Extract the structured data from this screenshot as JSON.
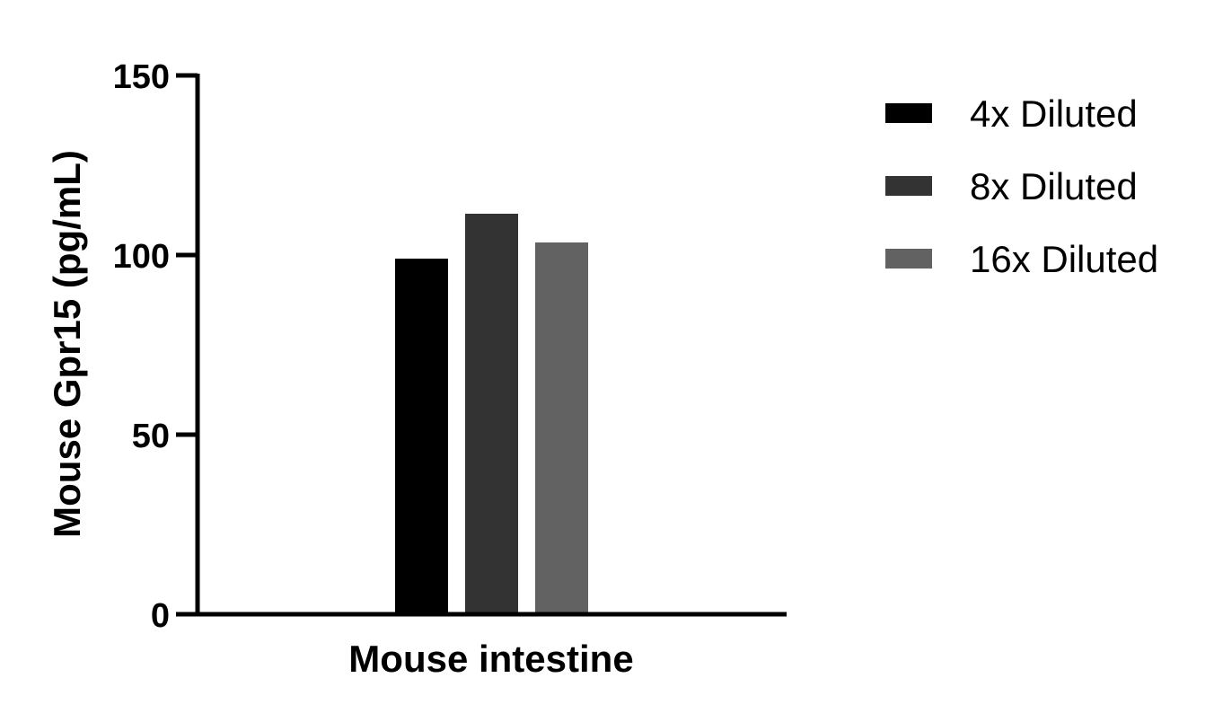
{
  "chart_data": {
    "type": "bar",
    "categories": [
      "Mouse intestine"
    ],
    "series": [
      {
        "name": "4x Diluted",
        "values": [
          99
        ],
        "color": "#000000"
      },
      {
        "name": "8x Diluted",
        "values": [
          111.5
        ],
        "color": "#333333"
      },
      {
        "name": "16x Diluted",
        "values": [
          103.5
        ],
        "color": "#626262"
      }
    ],
    "xlabel": "Mouse intestine",
    "ylabel": "Mouse Gpr15 (pg/mL)",
    "ylim": [
      0,
      150
    ],
    "yticks": [
      "0",
      "50",
      "100",
      "150"
    ],
    "grid": false,
    "legend": "right"
  }
}
